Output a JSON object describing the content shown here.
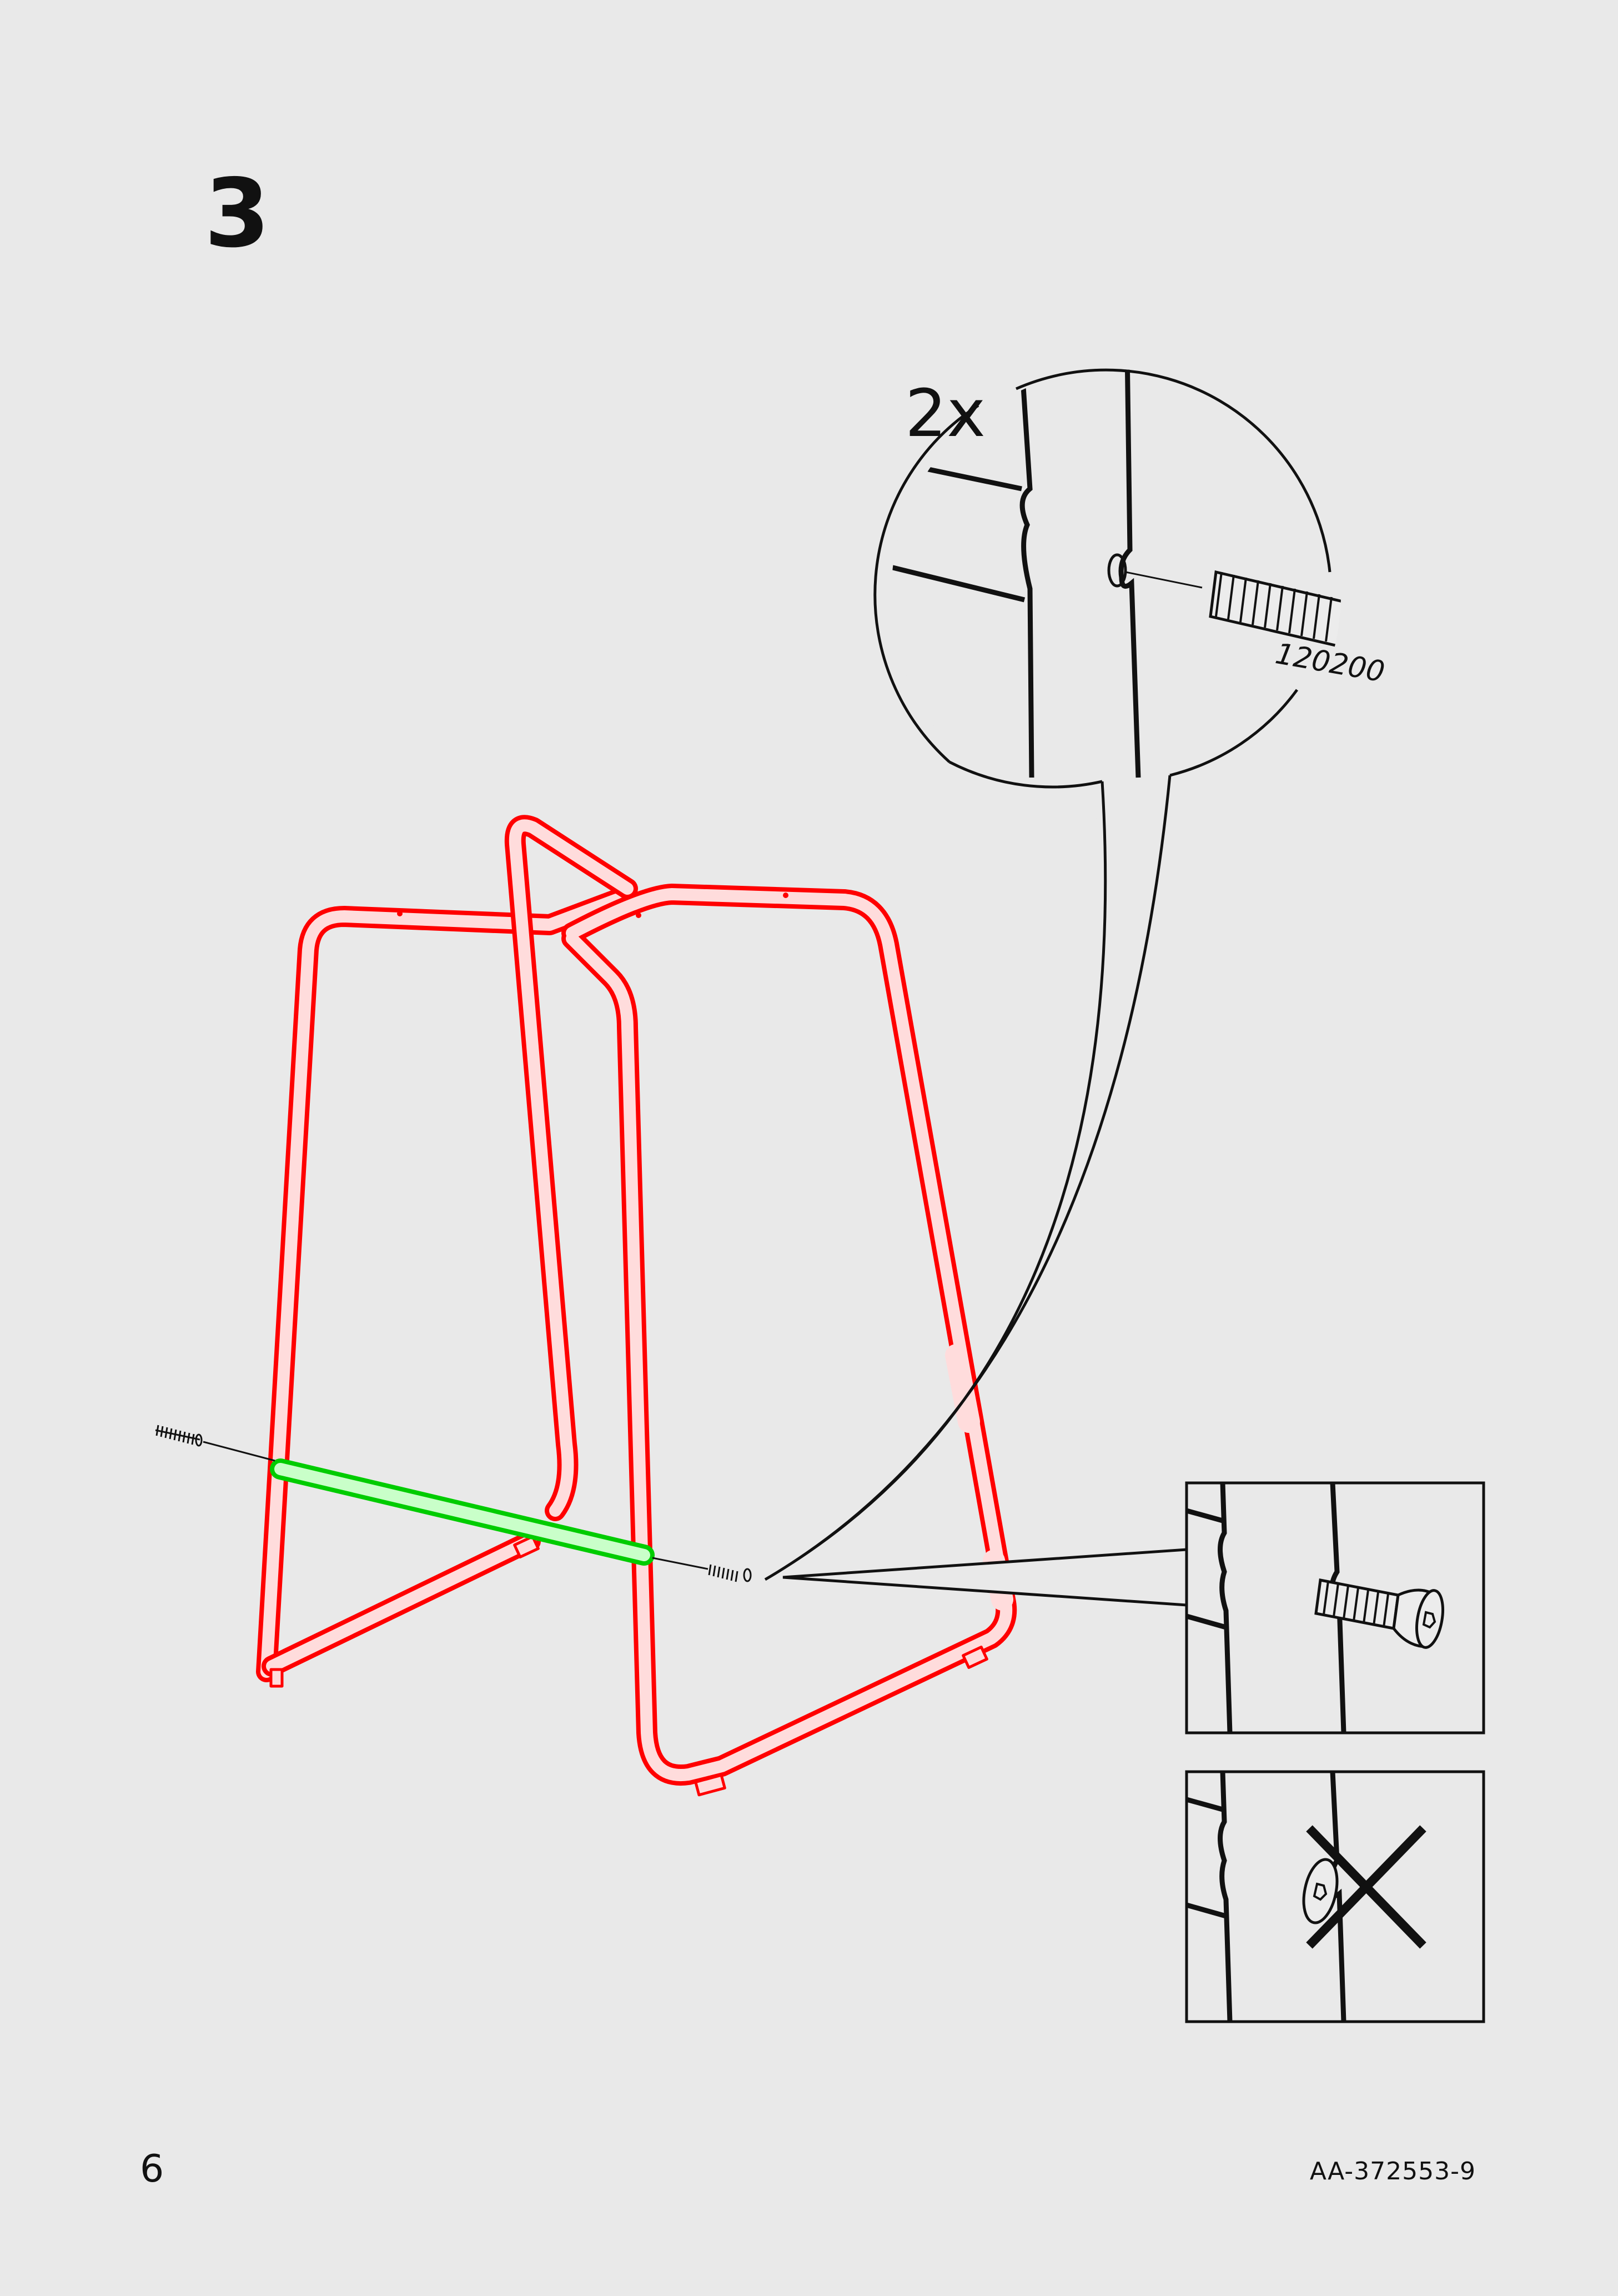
{
  "step": {
    "number": "3"
  },
  "detail": {
    "quantity": "2x",
    "part_number": "120200"
  },
  "footer": {
    "page_number": "6",
    "document_code": "AA-372553-9"
  },
  "colors": {
    "background": "#e9e9e9",
    "line": "#111111",
    "frame_highlight": "#ff0000",
    "crossbar_highlight": "#00e000"
  },
  "icons": [
    "screw-icon",
    "incorrect-cross-icon"
  ]
}
